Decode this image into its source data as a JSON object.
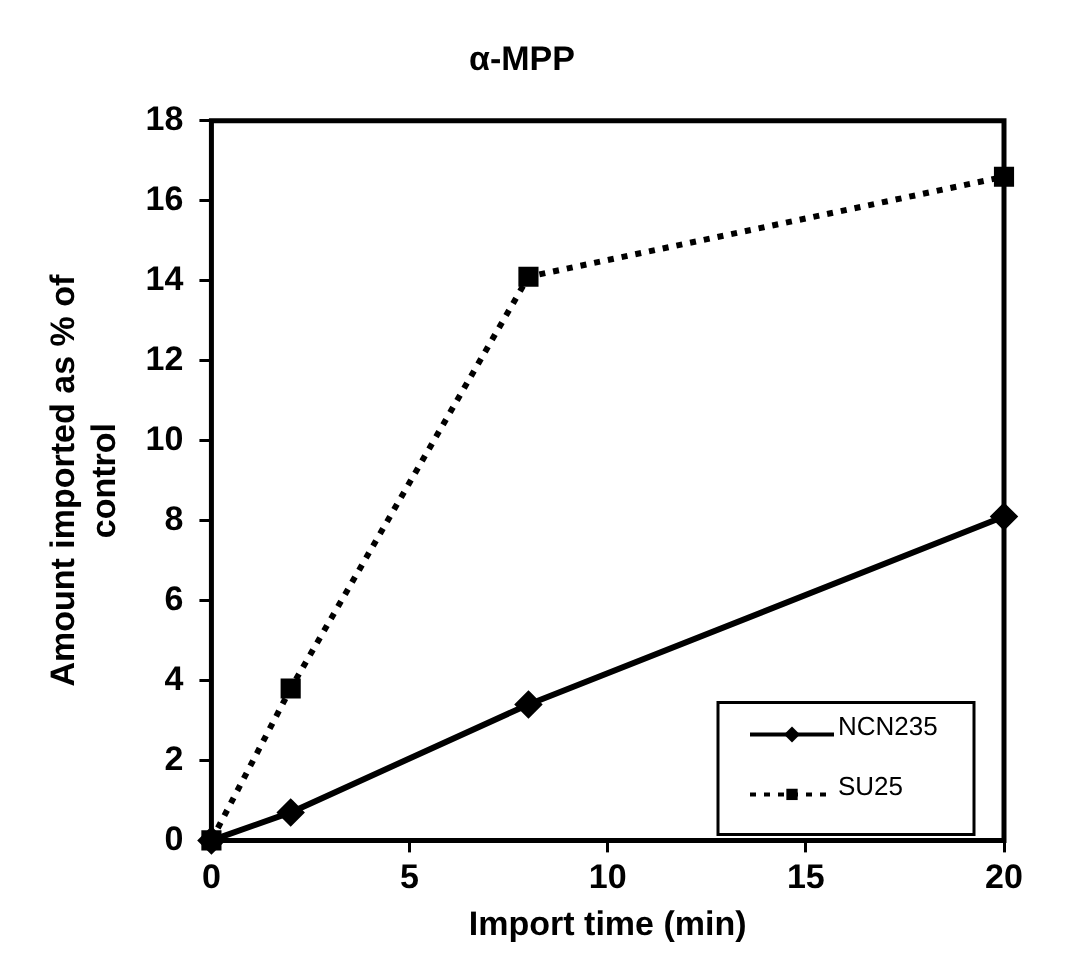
{
  "chart_data": {
    "type": "line",
    "title": "α-MPP",
    "xlabel": "Import time (min)",
    "ylabel": "Amount imported as % of control",
    "x": [
      0,
      2,
      8,
      20
    ],
    "xlim": [
      0,
      20
    ],
    "xticks": [
      0,
      5,
      10,
      15,
      20
    ],
    "ylim": [
      0,
      18
    ],
    "yticks": [
      0,
      2,
      4,
      6,
      8,
      10,
      12,
      14,
      16,
      18
    ],
    "series": [
      {
        "name": "NCN235",
        "color": "#000000",
        "values": [
          0,
          0.7,
          3.4,
          8.1
        ],
        "marker": "diamond",
        "line_style": "solid"
      },
      {
        "name": "SU25",
        "color": "#000000",
        "values": [
          0,
          3.8,
          14.1,
          16.6
        ],
        "marker": "square",
        "line_style": "dotted"
      }
    ],
    "grid": false,
    "legend": "bottom right"
  }
}
